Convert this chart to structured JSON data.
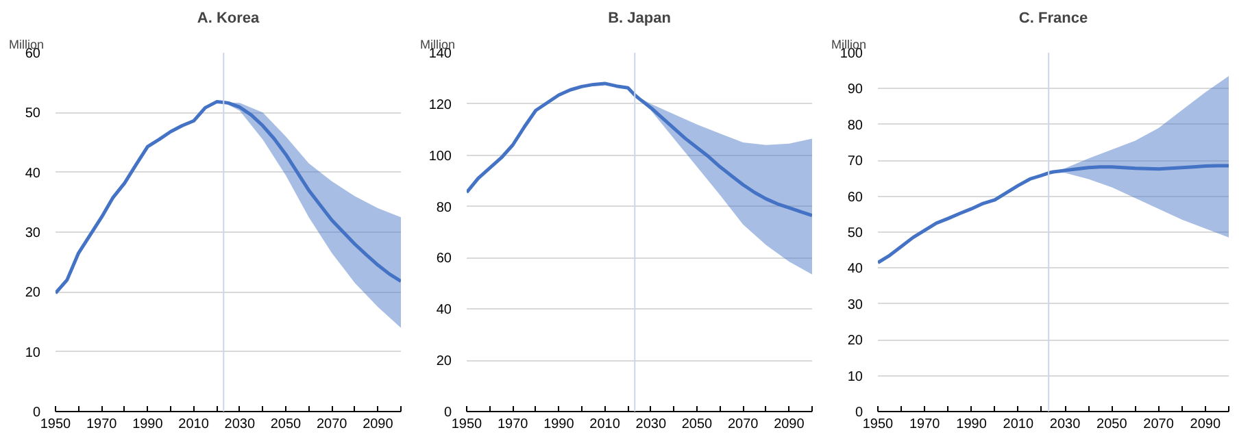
{
  "chart_data": [
    {
      "type": "line",
      "title": "A. Korea",
      "ylabel": "Million",
      "x": [
        1950,
        1955,
        1960,
        1965,
        1970,
        1975,
        1980,
        1985,
        1990,
        1995,
        2000,
        2005,
        2010,
        2015,
        2020,
        2023,
        2025,
        2030,
        2035,
        2040,
        2045,
        2050,
        2055,
        2060,
        2065,
        2070,
        2075,
        2080,
        2085,
        2090,
        2095,
        2100
      ],
      "series": [
        {
          "color": "#4472c4",
          "values": [
            19.8,
            22,
            26.5,
            29.5,
            32.5,
            35.8,
            38.2,
            41.3,
            44.3,
            45.5,
            46.8,
            47.8,
            48.6,
            50.8,
            51.8,
            51.7,
            51.6,
            50.9,
            49.6,
            47.8,
            45.6,
            43,
            40,
            37,
            34.5,
            32,
            30,
            28,
            26.2,
            24.5,
            23,
            21.8
          ],
          "lower": [
            null,
            null,
            null,
            null,
            null,
            null,
            null,
            null,
            null,
            null,
            null,
            null,
            null,
            null,
            null,
            51.7,
            null,
            50.3,
            null,
            45.5,
            null,
            39.5,
            null,
            32.5,
            null,
            26.5,
            null,
            21.5,
            null,
            17.5,
            null,
            14
          ],
          "upper": [
            null,
            null,
            null,
            null,
            null,
            null,
            null,
            null,
            null,
            null,
            null,
            null,
            null,
            null,
            null,
            51.7,
            null,
            51.6,
            null,
            50,
            null,
            46,
            null,
            41.5,
            null,
            38.5,
            null,
            36,
            null,
            34,
            null,
            32.5
          ]
        }
      ],
      "xlim": [
        1950,
        2100
      ],
      "ylim": [
        0,
        60
      ],
      "yticks": [
        0,
        10,
        20,
        30,
        40,
        50,
        60
      ],
      "xticks": [
        1950,
        {
          "value": 1960,
          "label": null
        },
        1970,
        {
          "value": 1980,
          "label": null
        },
        1990,
        {
          "value": 2000,
          "label": null
        },
        2010,
        {
          "value": 2020,
          "label": null
        },
        2030,
        {
          "value": 2040,
          "label": null
        },
        2050,
        {
          "value": 2060,
          "label": null
        },
        2070,
        {
          "value": 2080,
          "label": null
        },
        2090,
        {
          "value": 2100,
          "label": null
        }
      ],
      "ref_lines": [
        {
          "axis": "x",
          "value": 2023,
          "color": "#c9d6ea"
        }
      ],
      "grid": "y",
      "line_style": "solid"
    },
    {
      "type": "line",
      "title": "B. Japan",
      "ylabel": "Million",
      "x": [
        1950,
        1955,
        1960,
        1965,
        1970,
        1975,
        1980,
        1985,
        1990,
        1995,
        2000,
        2005,
        2010,
        2015,
        2020,
        2023,
        2025,
        2030,
        2035,
        2040,
        2045,
        2050,
        2055,
        2060,
        2065,
        2070,
        2075,
        2080,
        2085,
        2090,
        2095,
        2100
      ],
      "series": [
        {
          "color": "#4472c4",
          "values": [
            85.5,
            91,
            95,
            99,
            104,
            111,
            117.5,
            120.5,
            123.5,
            125.5,
            126.8,
            127.6,
            128,
            127,
            126.3,
            123.5,
            122,
            118.5,
            114.5,
            110.5,
            106.5,
            103,
            99.5,
            95.5,
            92,
            88.5,
            85.5,
            83,
            81,
            79.5,
            78,
            76.5
          ],
          "lower": [
            null,
            null,
            null,
            null,
            null,
            null,
            null,
            null,
            null,
            null,
            null,
            null,
            null,
            null,
            null,
            123.5,
            null,
            117.5,
            null,
            106.5,
            null,
            95.5,
            null,
            84.5,
            null,
            73,
            null,
            65,
            null,
            58.5,
            null,
            53.5
          ],
          "upper": [
            null,
            null,
            null,
            null,
            null,
            null,
            null,
            null,
            null,
            null,
            null,
            null,
            null,
            null,
            null,
            123.5,
            null,
            120,
            null,
            116,
            null,
            112,
            null,
            108.5,
            null,
            105,
            null,
            104,
            null,
            104.5,
            null,
            106.5
          ]
        }
      ],
      "xlim": [
        1950,
        2100
      ],
      "ylim": [
        0,
        140
      ],
      "yticks": [
        0,
        20,
        40,
        60,
        80,
        100,
        120,
        140
      ],
      "xticks": [
        1950,
        {
          "value": 1960,
          "label": null
        },
        1970,
        {
          "value": 1980,
          "label": null
        },
        1990,
        {
          "value": 2000,
          "label": null
        },
        2010,
        {
          "value": 2020,
          "label": null
        },
        2030,
        {
          "value": 2040,
          "label": null
        },
        2050,
        {
          "value": 2060,
          "label": null
        },
        2070,
        {
          "value": 2080,
          "label": null
        },
        2090,
        {
          "value": 2100,
          "label": null
        }
      ],
      "ref_lines": [
        {
          "axis": "x",
          "value": 2023,
          "color": "#c9d6ea"
        }
      ],
      "grid": "y",
      "line_style": "solid"
    },
    {
      "type": "line",
      "title": "C. France",
      "ylabel": "Million",
      "x": [
        1950,
        1955,
        1960,
        1965,
        1970,
        1975,
        1980,
        1985,
        1990,
        1995,
        2000,
        2005,
        2010,
        2015,
        2020,
        2023,
        2025,
        2030,
        2035,
        2040,
        2045,
        2050,
        2055,
        2060,
        2065,
        2070,
        2075,
        2080,
        2085,
        2090,
        2095,
        2100
      ],
      "series": [
        {
          "color": "#4472c4",
          "values": [
            41.5,
            43.5,
            46,
            48.5,
            50.5,
            52.5,
            53.8,
            55.2,
            56.5,
            58,
            59,
            61,
            63,
            64.8,
            65.8,
            66.5,
            66.8,
            67.2,
            67.6,
            68,
            68.2,
            68.2,
            68,
            67.8,
            67.7,
            67.6,
            67.8,
            68,
            68.2,
            68.4,
            68.5,
            68.5
          ],
          "lower": [
            null,
            null,
            null,
            null,
            null,
            null,
            null,
            null,
            null,
            null,
            null,
            null,
            null,
            null,
            null,
            66.5,
            null,
            66.5,
            null,
            64.8,
            null,
            62.5,
            null,
            59.5,
            null,
            56.5,
            null,
            53.5,
            null,
            51,
            null,
            48.5
          ],
          "upper": [
            null,
            null,
            null,
            null,
            null,
            null,
            null,
            null,
            null,
            null,
            null,
            null,
            null,
            null,
            null,
            66.5,
            null,
            67.8,
            null,
            70.5,
            null,
            73,
            null,
            75.5,
            null,
            79,
            null,
            84,
            null,
            89,
            null,
            93.5
          ]
        }
      ],
      "xlim": [
        1950,
        2100
      ],
      "ylim": [
        0,
        100
      ],
      "yticks": [
        0,
        10,
        20,
        30,
        40,
        50,
        60,
        70,
        80,
        90,
        100
      ],
      "xticks": [
        1950,
        {
          "value": 1960,
          "label": null
        },
        1970,
        {
          "value": 1980,
          "label": null
        },
        1990,
        {
          "value": 2000,
          "label": null
        },
        2010,
        {
          "value": 2020,
          "label": null
        },
        2030,
        {
          "value": 2040,
          "label": null
        },
        2050,
        {
          "value": 2060,
          "label": null
        },
        2070,
        {
          "value": 2080,
          "label": null
        },
        2090,
        {
          "value": 2100,
          "label": null
        }
      ],
      "ref_lines": [
        {
          "axis": "x",
          "value": 2023,
          "color": "#c9d6ea"
        }
      ],
      "grid": "y",
      "line_style": "solid"
    }
  ]
}
